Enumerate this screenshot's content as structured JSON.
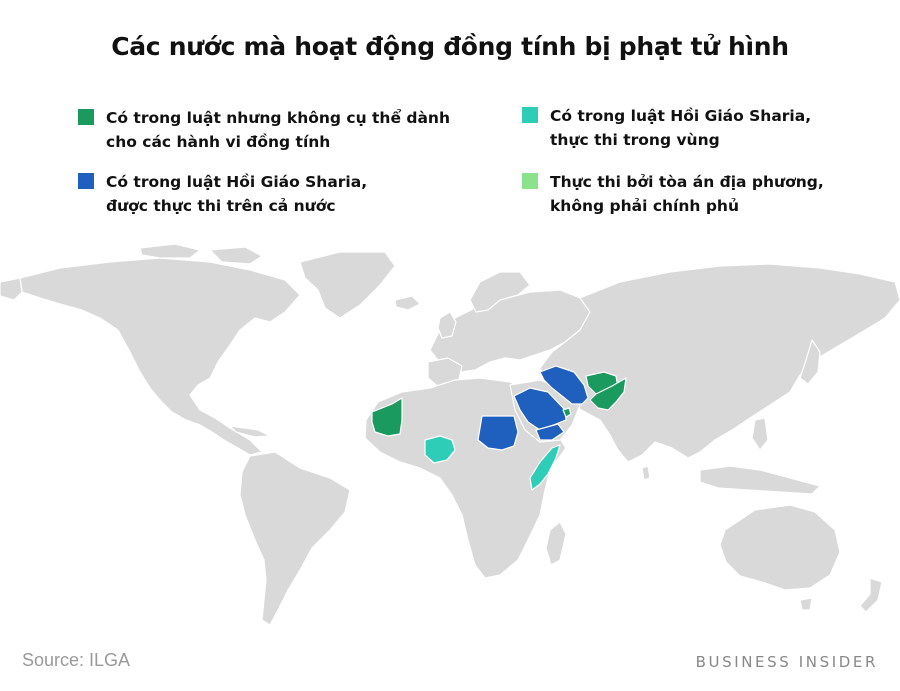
{
  "title": "Các nước mà hoạt động đồng tính bị phạt tử hình",
  "legend": [
    {
      "lines": [
        "Có trong luật nhưng không cụ thể dành",
        "cho các hành vi đồng tính"
      ],
      "color": "#1a9a5e"
    },
    {
      "lines": [
        "Có trong luật Hồi Giáo Sharia,",
        "được thực thi trên cả nước"
      ],
      "color": "#1f5fbd"
    },
    {
      "lines": [
        "Có trong luật Hồi Giáo Sharia,",
        "thực thi trong vùng"
      ],
      "color": "#2dcdb7"
    },
    {
      "lines": [
        "Thực thi bởi tòa án địa phương,",
        "không phải chính phủ"
      ],
      "color": "#8ae38b"
    }
  ],
  "map_colors": {
    "land": "#d9d9d9",
    "border": "#ffffff"
  },
  "highlighted_countries": [
    {
      "name": "Mauritania",
      "category": 0
    },
    {
      "name": "Qatar",
      "category": 0
    },
    {
      "name": "Afghanistan",
      "category": 0
    },
    {
      "name": "Pakistan",
      "category": 0
    },
    {
      "name": "Sudan",
      "category": 1
    },
    {
      "name": "Saudi Arabia",
      "category": 1
    },
    {
      "name": "Yemen",
      "category": 1
    },
    {
      "name": "Iran",
      "category": 1
    },
    {
      "name": "Nigeria",
      "category": 2
    },
    {
      "name": "Somalia",
      "category": 2
    }
  ],
  "footer": {
    "source": "Source: ILGA",
    "brand": "BUSINESS INSIDER"
  }
}
